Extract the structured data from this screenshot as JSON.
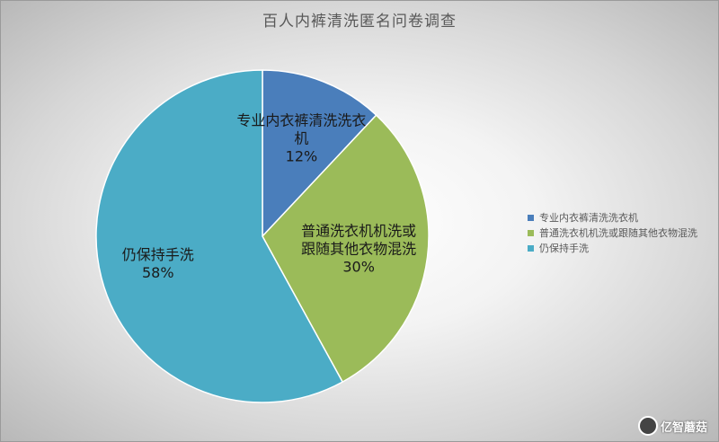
{
  "chart_data": {
    "type": "pie",
    "title": "百人内裤清洗匿名问卷调查",
    "slices": [
      {
        "name": "专业内衣裤清洗洗衣机",
        "value": 12,
        "label_lines": [
          "专业内衣裤清洗洗衣",
          "机",
          "12%"
        ],
        "color": "#4a7ebb"
      },
      {
        "name": "普通洗衣机机洗或跟随其他衣物混洗",
        "value": 30,
        "label_lines": [
          "普通洗衣机机洗或",
          "跟随其他衣物混洗",
          "30%"
        ],
        "color": "#9bbb59"
      },
      {
        "name": "仍保持手洗",
        "value": 58,
        "label_lines": [
          "仍保持手洗",
          "58%"
        ],
        "color": "#4bacc6"
      }
    ],
    "legend_position": "right",
    "data_labels": "inside"
  },
  "watermark": {
    "text": "亿智蘑菇"
  }
}
